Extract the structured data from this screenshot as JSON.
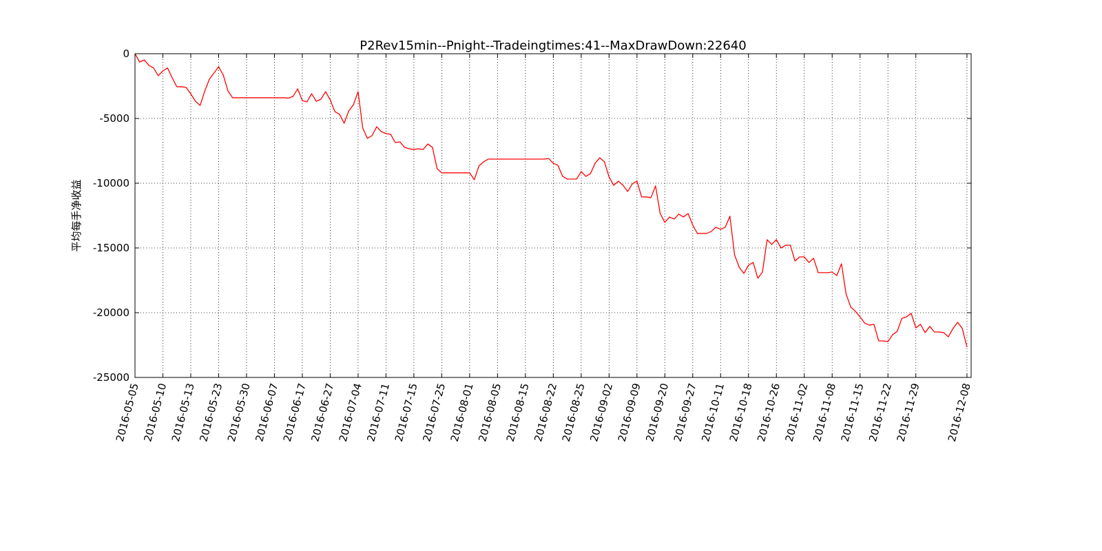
{
  "chart_data": {
    "type": "line",
    "title": "P2Rev15min--Pnight--Tradeingtimes:41--MaxDrawDown:22640",
    "y_label": "平均每手净收益",
    "color": "#ff0000",
    "grid": true,
    "ylim": [
      -25000,
      0
    ],
    "yticks": [
      0,
      -5000,
      -10000,
      -15000,
      -20000,
      -25000
    ],
    "categories": [
      "2016-05-05",
      null,
      null,
      null,
      null,
      null,
      "2016-05-10",
      null,
      null,
      null,
      null,
      null,
      "2016-05-13",
      null,
      null,
      null,
      null,
      null,
      "2016-05-23",
      null,
      null,
      null,
      null,
      null,
      "2016-05-30",
      null,
      null,
      null,
      null,
      null,
      "2016-06-07",
      null,
      null,
      null,
      null,
      null,
      "2016-06-17",
      null,
      null,
      null,
      null,
      null,
      "2016-06-27",
      null,
      null,
      null,
      null,
      null,
      "2016-07-04",
      null,
      null,
      null,
      null,
      null,
      "2016-07-11",
      null,
      null,
      null,
      null,
      null,
      "2016-07-15",
      null,
      null,
      null,
      null,
      null,
      "2016-07-25",
      null,
      null,
      null,
      null,
      null,
      "2016-08-01",
      null,
      null,
      null,
      null,
      null,
      "2016-08-05",
      null,
      null,
      null,
      null,
      null,
      "2016-08-15",
      null,
      null,
      null,
      null,
      null,
      "2016-08-22",
      null,
      null,
      null,
      null,
      null,
      "2016-08-25",
      null,
      null,
      null,
      null,
      null,
      "2016-09-02",
      null,
      null,
      null,
      null,
      null,
      "2016-09-09",
      null,
      null,
      null,
      null,
      null,
      "2016-09-20",
      null,
      null,
      null,
      null,
      null,
      "2016-09-27",
      null,
      null,
      null,
      null,
      null,
      "2016-10-11",
      null,
      null,
      null,
      null,
      null,
      "2016-10-18",
      null,
      null,
      null,
      null,
      null,
      "2016-10-26",
      null,
      null,
      null,
      null,
      null,
      "2016-11-02",
      null,
      null,
      null,
      null,
      null,
      "2016-11-08",
      null,
      null,
      null,
      null,
      null,
      "2016-11-15",
      null,
      null,
      null,
      null,
      null,
      "2016-11-22",
      null,
      null,
      null,
      null,
      null,
      "2016-11-29",
      null,
      null,
      null,
      null,
      null,
      null,
      null,
      null,
      null,
      null,
      "2016-12-08"
    ],
    "values": [
      0,
      -640,
      -480,
      -900,
      -1100,
      -1700,
      -1330,
      -1100,
      -1860,
      -2550,
      -2550,
      -2600,
      -3100,
      -3670,
      -4000,
      -2900,
      -1970,
      -1490,
      -1000,
      -1650,
      -2870,
      -3400,
      -3400,
      -3400,
      -3400,
      -3400,
      -3400,
      -3400,
      -3400,
      -3400,
      -3400,
      -3400,
      -3400,
      -3430,
      -3300,
      -2710,
      -3620,
      -3720,
      -3090,
      -3670,
      -3510,
      -2930,
      -3560,
      -4470,
      -4680,
      -5370,
      -4410,
      -3940,
      -2930,
      -5740,
      -6540,
      -6330,
      -5640,
      -6010,
      -6170,
      -6220,
      -6860,
      -6810,
      -7230,
      -7340,
      -7390,
      -7340,
      -7390,
      -6970,
      -7230,
      -8880,
      -9200,
      -9200,
      -9200,
      -9200,
      -9200,
      -9200,
      -9200,
      -9730,
      -8670,
      -8350,
      -8140,
      -8140,
      -8140,
      -8140,
      -8140,
      -8140,
      -8140,
      -8140,
      -8140,
      -8140,
      -8140,
      -8140,
      -8140,
      -8090,
      -8460,
      -8620,
      -9470,
      -9680,
      -9680,
      -9680,
      -9100,
      -9470,
      -9260,
      -8460,
      -8030,
      -8350,
      -9520,
      -10160,
      -9840,
      -10160,
      -10640,
      -10050,
      -9840,
      -11060,
      -11060,
      -11120,
      -10210,
      -12340,
      -13030,
      -12610,
      -12770,
      -12390,
      -12610,
      -12340,
      -13240,
      -13880,
      -13880,
      -13880,
      -13720,
      -13400,
      -13560,
      -13400,
      -12550,
      -15530,
      -16490,
      -16970,
      -16330,
      -16120,
      -17340,
      -16860,
      -14360,
      -14730,
      -14360,
      -15000,
      -14790,
      -14790,
      -16010,
      -15690,
      -15690,
      -16120,
      -15800,
      -16910,
      -16910,
      -16910,
      -16860,
      -17130,
      -16220,
      -18560,
      -19570,
      -19890,
      -20320,
      -20800,
      -20960,
      -20900,
      -22180,
      -22180,
      -22230,
      -21700,
      -21440,
      -20430,
      -20320,
      -20050,
      -21170,
      -20900,
      -21540,
      -21060,
      -21490,
      -21490,
      -21540,
      -21860,
      -21220,
      -20740,
      -21220,
      -22660
    ]
  }
}
